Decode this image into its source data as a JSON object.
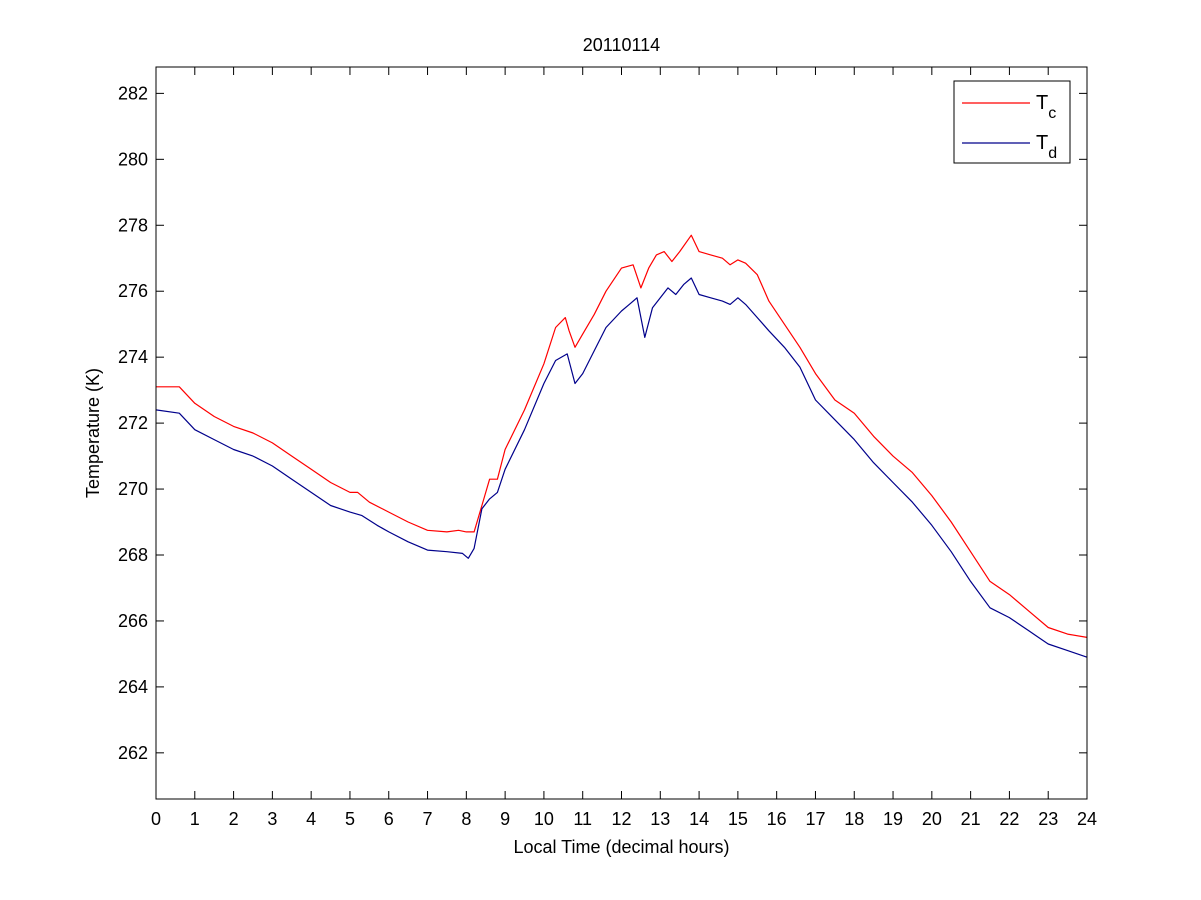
{
  "chart_data": {
    "type": "line",
    "title": "20110114",
    "xlabel": "Local Time (decimal hours)",
    "ylabel": "Temperature (K)",
    "xlim": [
      0,
      24
    ],
    "ylim": [
      260.6,
      282.8
    ],
    "xticks": [
      0,
      1,
      2,
      3,
      4,
      5,
      6,
      7,
      8,
      9,
      10,
      11,
      12,
      13,
      14,
      15,
      16,
      17,
      18,
      19,
      20,
      21,
      22,
      23,
      24
    ],
    "yticks": [
      262,
      264,
      266,
      268,
      270,
      272,
      274,
      276,
      278,
      280,
      282
    ],
    "grid": false,
    "legend_position": "top-right",
    "legend": [
      {
        "base": "T",
        "sub": "c",
        "color": "#ff0000"
      },
      {
        "base": "T",
        "sub": "d",
        "color": "#00008b"
      }
    ],
    "series": [
      {
        "color": "#ff0000",
        "x": [
          0,
          0.6,
          1,
          1.5,
          2,
          2.5,
          3,
          3.5,
          4,
          4.5,
          5,
          5.2,
          5.5,
          6,
          6.5,
          7,
          7.5,
          7.8,
          8,
          8.2,
          8.4,
          8.6,
          8.8,
          9,
          9.5,
          10,
          10.3,
          10.55,
          10.65,
          10.8,
          11,
          11.3,
          11.6,
          12,
          12.3,
          12.5,
          12.7,
          12.9,
          13.1,
          13.3,
          13.5,
          13.8,
          14,
          14.3,
          14.6,
          14.8,
          15,
          15.2,
          15.5,
          15.8,
          16.2,
          16.6,
          17,
          17.5,
          18,
          18.5,
          19,
          19.5,
          20,
          20.5,
          21,
          21.5,
          22,
          22.5,
          23,
          23.5,
          24
        ],
        "y": [
          273.1,
          273.1,
          272.6,
          272.2,
          271.9,
          271.7,
          271.4,
          271,
          270.6,
          270.2,
          269.9,
          269.9,
          269.6,
          269.3,
          269,
          268.75,
          268.7,
          268.75,
          268.7,
          268.7,
          269.5,
          270.3,
          270.3,
          271.2,
          272.4,
          273.8,
          274.9,
          275.2,
          274.8,
          274.3,
          274.7,
          275.3,
          276,
          276.7,
          276.8,
          276.1,
          276.7,
          277.1,
          277.2,
          276.9,
          277.2,
          277.7,
          277.2,
          277.1,
          277,
          276.8,
          276.95,
          276.85,
          276.5,
          275.7,
          275,
          274.3,
          273.5,
          272.7,
          272.3,
          271.6,
          271,
          270.5,
          269.8,
          269,
          268.1,
          267.2,
          266.8,
          266.3,
          265.8,
          265.6,
          265.5
        ]
      },
      {
        "color": "#00008b",
        "x": [
          0,
          0.6,
          1,
          1.5,
          2,
          2.5,
          3,
          3.5,
          4,
          4.5,
          5,
          5.3,
          5.7,
          6,
          6.5,
          7,
          7.5,
          7.9,
          8.05,
          8.2,
          8.4,
          8.6,
          8.8,
          9,
          9.5,
          10,
          10.3,
          10.6,
          10.8,
          11,
          11.3,
          11.6,
          12,
          12.2,
          12.4,
          12.6,
          12.8,
          13,
          13.2,
          13.4,
          13.6,
          13.8,
          14,
          14.3,
          14.6,
          14.8,
          15,
          15.2,
          15.5,
          15.8,
          16.2,
          16.6,
          17,
          17.5,
          18,
          18.5,
          19,
          19.5,
          20,
          20.5,
          21,
          21.5,
          22,
          22.5,
          23,
          23.5,
          24
        ],
        "y": [
          272.4,
          272.3,
          271.8,
          271.5,
          271.2,
          271,
          270.7,
          270.3,
          269.9,
          269.5,
          269.3,
          269.2,
          268.9,
          268.7,
          268.4,
          268.15,
          268.1,
          268.05,
          267.9,
          268.2,
          269.4,
          269.7,
          269.9,
          270.6,
          271.8,
          273.2,
          273.9,
          274.1,
          273.2,
          273.5,
          274.2,
          274.9,
          275.4,
          275.6,
          275.8,
          274.6,
          275.5,
          275.8,
          276.1,
          275.9,
          276.2,
          276.4,
          275.9,
          275.8,
          275.7,
          275.6,
          275.8,
          275.6,
          275.2,
          274.8,
          274.3,
          273.7,
          272.7,
          272.1,
          271.5,
          270.8,
          270.2,
          269.6,
          268.9,
          268.1,
          267.2,
          266.4,
          266.1,
          265.7,
          265.3,
          265.1,
          264.9
        ]
      }
    ]
  }
}
